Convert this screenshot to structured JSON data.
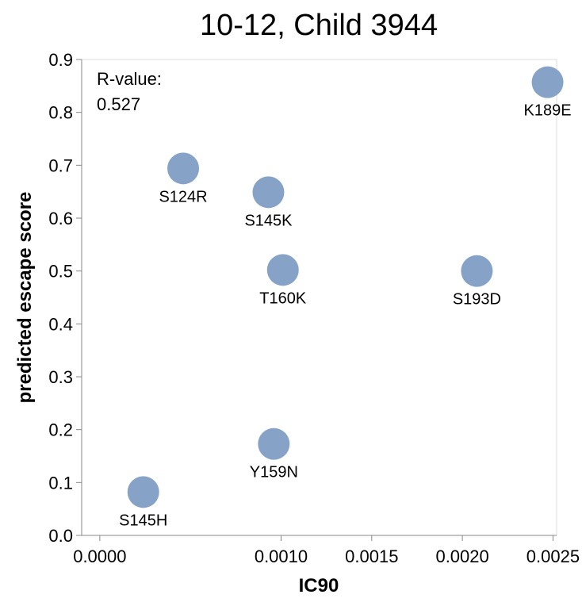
{
  "chart_data": {
    "type": "scatter",
    "title": "10-12, Child 3944",
    "xlabel": "IC90",
    "ylabel": "predicted escape score",
    "xlim": [
      -0.0001,
      0.00252
    ],
    "ylim": [
      0,
      0.9
    ],
    "x_ticks": [
      "0.0000",
      "0.0010",
      "0.0015",
      "0.0020",
      "0.0025"
    ],
    "x_tick_values": [
      0.0,
      0.001,
      0.0015,
      0.002,
      0.0025
    ],
    "y_ticks": [
      "0.0",
      "0.1",
      "0.2",
      "0.3",
      "0.4",
      "0.5",
      "0.6",
      "0.7",
      "0.8",
      "0.9"
    ],
    "y_tick_values": [
      0.0,
      0.1,
      0.2,
      0.3,
      0.4,
      0.5,
      0.6,
      0.7,
      0.8,
      0.9
    ],
    "grid": false,
    "point_color": "#86a3c7",
    "annotation": {
      "line1": "R-value:",
      "line2": "0.527"
    },
    "points": [
      {
        "label": "S145H",
        "x": 0.00024,
        "y": 0.082
      },
      {
        "label": "S124R",
        "x": 0.00046,
        "y": 0.694
      },
      {
        "label": "S145K",
        "x": 0.00093,
        "y": 0.649
      },
      {
        "label": "Y159N",
        "x": 0.00096,
        "y": 0.173
      },
      {
        "label": "T160K",
        "x": 0.00101,
        "y": 0.502
      },
      {
        "label": "S193D",
        "x": 0.00208,
        "y": 0.5
      },
      {
        "label": "K189E",
        "x": 0.00247,
        "y": 0.857
      }
    ]
  }
}
